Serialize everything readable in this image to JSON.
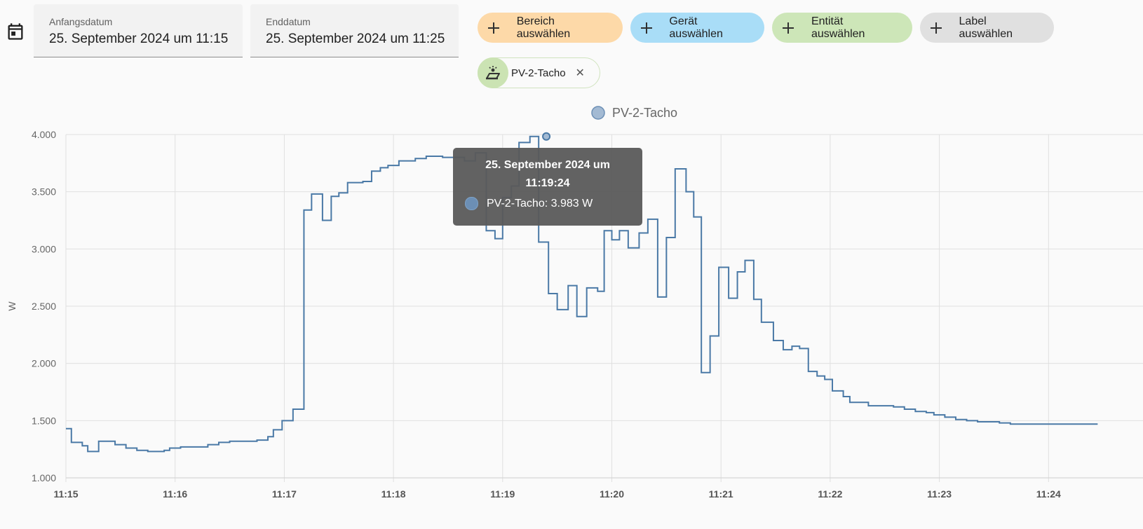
{
  "filters": {
    "start": {
      "label": "Anfangsdatum",
      "value": "25. September 2024 um 11:15"
    },
    "end": {
      "label": "Enddatum",
      "value": "25. September 2024 um 11:25"
    }
  },
  "targets": {
    "area": "Bereich auswählen",
    "device": "Gerät auswählen",
    "entity": "Entität auswählen",
    "label": "Label auswählen"
  },
  "selected_entity": {
    "name": "PV-2-Tacho",
    "icon": "solar-power-icon"
  },
  "colors": {
    "line": "#4a79a6",
    "area_btn": "#fdd9a8",
    "device_btn": "#a9ddf7",
    "entity_btn": "#cde6b8",
    "label_btn": "#e0e0e0"
  },
  "tooltip": {
    "title": "25. September 2024 um 11:19:24",
    "series_line": "PV-2-Tacho: 3.983 W"
  },
  "chart_data": {
    "type": "line",
    "step": true,
    "legend": "PV-2-Tacho",
    "ylabel": "W",
    "ylim": [
      1000,
      4000
    ],
    "yticks": [
      "1.000",
      "1.500",
      "2.000",
      "2.500",
      "3.000",
      "3.500",
      "4.000"
    ],
    "xticks": [
      "11:15",
      "11:16",
      "11:17",
      "11:18",
      "11:19",
      "11:20",
      "11:21",
      "11:22",
      "11:23",
      "11:24"
    ],
    "xlim_minutes": [
      0,
      9.45
    ],
    "series": [
      {
        "name": "PV-2-Tacho",
        "points": [
          [
            0,
            1430
          ],
          [
            0.05,
            1310
          ],
          [
            0.15,
            1280
          ],
          [
            0.2,
            1230
          ],
          [
            0.3,
            1320
          ],
          [
            0.45,
            1290
          ],
          [
            0.55,
            1260
          ],
          [
            0.65,
            1240
          ],
          [
            0.75,
            1230
          ],
          [
            0.9,
            1240
          ],
          [
            0.95,
            1260
          ],
          [
            1.05,
            1270
          ],
          [
            1.2,
            1270
          ],
          [
            1.3,
            1290
          ],
          [
            1.4,
            1310
          ],
          [
            1.5,
            1320
          ],
          [
            1.65,
            1320
          ],
          [
            1.75,
            1330
          ],
          [
            1.85,
            1360
          ],
          [
            1.9,
            1420
          ],
          [
            1.98,
            1500
          ],
          [
            2.08,
            1600
          ],
          [
            2.18,
            3340
          ],
          [
            2.25,
            3480
          ],
          [
            2.35,
            3250
          ],
          [
            2.43,
            3460
          ],
          [
            2.5,
            3490
          ],
          [
            2.58,
            3580
          ],
          [
            2.72,
            3590
          ],
          [
            2.8,
            3680
          ],
          [
            2.88,
            3710
          ],
          [
            2.95,
            3730
          ],
          [
            3.05,
            3770
          ],
          [
            3.2,
            3790
          ],
          [
            3.3,
            3810
          ],
          [
            3.45,
            3800
          ],
          [
            3.55,
            3800
          ],
          [
            3.65,
            3770
          ],
          [
            3.75,
            3840
          ],
          [
            3.85,
            3160
          ],
          [
            3.93,
            3090
          ],
          [
            4.0,
            3450
          ],
          [
            4.08,
            3550
          ],
          [
            4.15,
            3930
          ],
          [
            4.25,
            3983
          ],
          [
            4.33,
            3060
          ],
          [
            4.42,
            2610
          ],
          [
            4.5,
            2470
          ],
          [
            4.6,
            2680
          ],
          [
            4.68,
            2410
          ],
          [
            4.77,
            2660
          ],
          [
            4.87,
            2630
          ],
          [
            4.93,
            3160
          ],
          [
            5.0,
            3080
          ],
          [
            5.07,
            3160
          ],
          [
            5.15,
            3010
          ],
          [
            5.25,
            3140
          ],
          [
            5.33,
            3260
          ],
          [
            5.42,
            2580
          ],
          [
            5.5,
            3100
          ],
          [
            5.58,
            3700
          ],
          [
            5.68,
            3500
          ],
          [
            5.75,
            3280
          ],
          [
            5.82,
            1920
          ],
          [
            5.9,
            2240
          ],
          [
            5.98,
            2840
          ],
          [
            6.07,
            2570
          ],
          [
            6.15,
            2800
          ],
          [
            6.22,
            2900
          ],
          [
            6.3,
            2560
          ],
          [
            6.37,
            2360
          ],
          [
            6.48,
            2200
          ],
          [
            6.57,
            2120
          ],
          [
            6.65,
            2150
          ],
          [
            6.72,
            2130
          ],
          [
            6.8,
            1930
          ],
          [
            6.88,
            1890
          ],
          [
            6.95,
            1860
          ],
          [
            7.02,
            1760
          ],
          [
            7.12,
            1710
          ],
          [
            7.18,
            1660
          ],
          [
            7.35,
            1630
          ],
          [
            7.45,
            1630
          ],
          [
            7.58,
            1620
          ],
          [
            7.68,
            1600
          ],
          [
            7.78,
            1580
          ],
          [
            7.88,
            1570
          ],
          [
            7.95,
            1550
          ],
          [
            8.05,
            1530
          ],
          [
            8.15,
            1510
          ],
          [
            8.25,
            1500
          ],
          [
            8.35,
            1490
          ],
          [
            8.45,
            1490
          ],
          [
            8.55,
            1480
          ],
          [
            8.65,
            1470
          ],
          [
            8.8,
            1470
          ],
          [
            9.45,
            1470
          ]
        ]
      }
    ]
  }
}
